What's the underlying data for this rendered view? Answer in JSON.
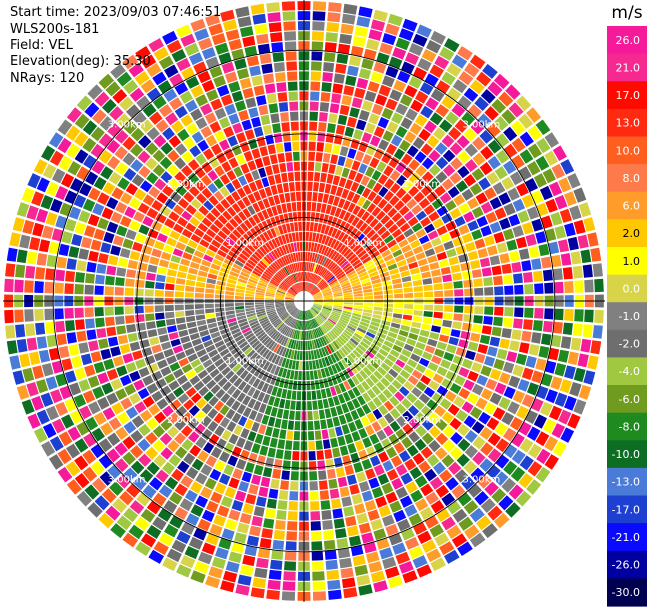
{
  "info": {
    "start_time": "Start time: 2023/09/03 07:46:51",
    "instrument": "WLS200s-181",
    "field": "Field: VEL",
    "elevation": "Elevation(deg): 35.30",
    "nrays": "NRays: 120"
  },
  "chart_data": {
    "type": "heatmap",
    "subtype": "ppi-polar",
    "field": "VEL",
    "units": "m/s",
    "nrays": 120,
    "elevation_deg": 35.3,
    "range_ring_labels": [
      "1.00km",
      "2.00km",
      "3.00km"
    ],
    "range_rings_km": [
      1,
      2,
      3
    ],
    "max_range_km": 3.6,
    "colorbar": {
      "title": "m/s",
      "tick_labels": [
        "26.0",
        "21.0",
        "17.0",
        "13.0",
        "10.0",
        "8.0",
        "6.0",
        "2.0",
        "1.0",
        "0.0",
        "-1.0",
        "-2.0",
        "-4.0",
        "-6.0",
        "-8.0",
        "-10.0",
        "-13.0",
        "-17.0",
        "-21.0",
        "-26.0",
        "-30.0"
      ],
      "colors": [
        "#f51a9a",
        "#f5298f",
        "#ff0a00",
        "#ff2a10",
        "#ff5e1f",
        "#ff7a4a",
        "#ff9c2a",
        "#ffc800",
        "#ffff00",
        "#d8d44a",
        "#808080",
        "#6e6e6e",
        "#a0c840",
        "#6f9b1f",
        "#1f8a1f",
        "#0d6e23",
        "#4a7bd8",
        "#1e40d0",
        "#0a0aff",
        "#0000a0",
        "#000050"
      ]
    },
    "pattern": {
      "near_field_sectors": [
        {
          "from_az_deg": 300,
          "to_az_deg": 60,
          "value": 11.5
        },
        {
          "from_az_deg": 60,
          "to_az_deg": 88,
          "value": 2.0
        },
        {
          "from_az_deg": 88,
          "to_az_deg": 105,
          "value": 0.0
        },
        {
          "from_az_deg": 105,
          "to_az_deg": 150,
          "value": -5.0
        },
        {
          "from_az_deg": 150,
          "to_az_deg": 200,
          "value": -9.0
        },
        {
          "from_az_deg": 200,
          "to_az_deg": 255,
          "value": -3.0
        },
        {
          "from_az_deg": 255,
          "to_az_deg": 272,
          "value": -2.0
        },
        {
          "from_az_deg": 272,
          "to_az_deg": 300,
          "value": 2.0
        }
      ],
      "coherent_range_km": 1.6,
      "noise_beyond": true
    }
  }
}
